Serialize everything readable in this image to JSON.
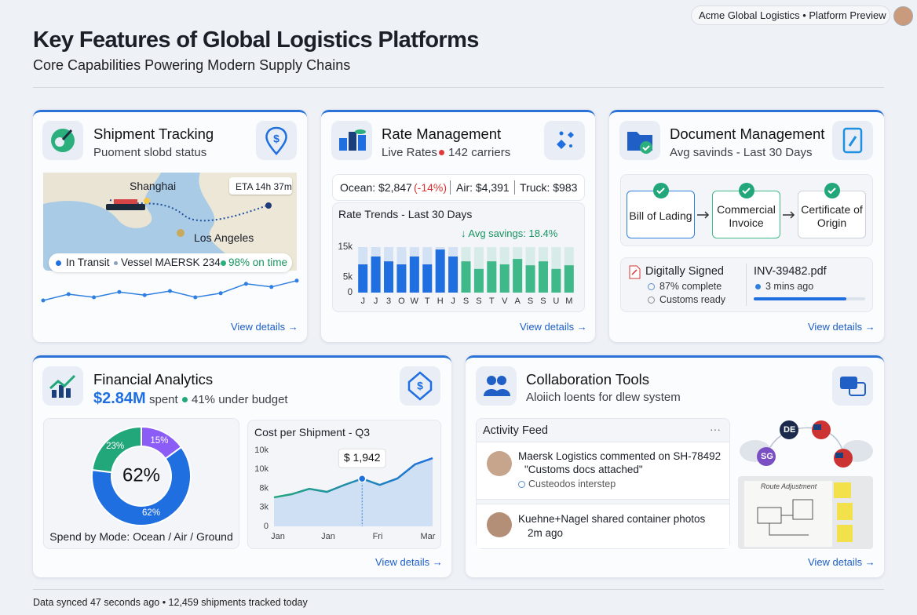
{
  "header": {
    "badge": "Acme Global Logistics • Platform Preview",
    "title": "Key Features of Global Logistics Platforms",
    "subtitle": "Core Capabilities Powering Modern Supply Chains"
  },
  "tracking": {
    "title": "Shipment Tracking",
    "subtitle": "Puoment slobd status",
    "origin": "Shanghai",
    "destination": "Los Angeles",
    "eta": "ETA 14h 37m",
    "status": [
      "In Transit",
      "Vessel MAERSK 234",
      "98% on time"
    ],
    "sparkline": {
      "type": "line",
      "values": [
        3,
        5,
        4,
        5.7,
        4.7,
        6,
        4,
        5.3,
        8.3,
        7.3,
        9.3
      ],
      "ylim": [
        0,
        10
      ],
      "color": "#2f7fe0"
    },
    "link": "View details →"
  },
  "rates": {
    "title": "Rate Management",
    "subtitle": "Live Rates",
    "carriers": "142 carriers",
    "ocean": "Ocean: $2,847",
    "ocean_change": "(-14%)",
    "air": "Air: $4,391",
    "truck": "Truck: $983",
    "chart": {
      "type": "bar",
      "title": "Rate Trends - Last 30 Days",
      "annotation": "↓ Avg savings: 18.4%",
      "categories": [
        "J",
        "J",
        "3",
        "O",
        "W",
        "T",
        "H",
        "J",
        "S",
        "S",
        "T",
        "V",
        "A",
        "S",
        "S",
        "U",
        "M"
      ],
      "values": [
        9300,
        11900,
        10300,
        9300,
        11900,
        9300,
        14200,
        11900,
        10300,
        7800,
        10300,
        9300,
        11100,
        9000,
        10300,
        7800,
        9000
      ],
      "colors": [
        "#1f6fe0",
        "#1f6fe0",
        "#1f6fe0",
        "#1f6fe0",
        "#1f6fe0",
        "#1f6fe0",
        "#1f6fe0",
        "#1f6fe0",
        "#3fb88a",
        "#3fb88a",
        "#3fb88a",
        "#3fb88a",
        "#3fb88a",
        "#3fb88a",
        "#3fb88a",
        "#3fb88a",
        "#3fb88a"
      ],
      "ylim": [
        0,
        15000
      ],
      "yticks": [
        {
          "value": 15000,
          "label": "15k"
        },
        {
          "value": 5000,
          "label": "5k"
        },
        0
      ]
    },
    "link": "View details →"
  },
  "documents": {
    "title": "Document Management",
    "subtitle": "Avg savinds - Last 30 Days",
    "steps": [
      "Bill of Lading",
      "Commercial Invoice",
      "Certificate of Origin"
    ],
    "signed": "Digitally Signed",
    "signed_items": [
      "87% complete",
      "Customs ready"
    ],
    "file": "INV-39482.pdf",
    "file_time": "3 mins ago",
    "link": "View details →"
  },
  "financial": {
    "title": "Financial Analytics",
    "amount": "$2.84M",
    "spent": "spent",
    "budget": "41% under budget",
    "donut": {
      "type": "pie",
      "values": [
        23,
        15,
        62
      ],
      "value_labels": [
        "23%",
        "15%",
        "62%"
      ],
      "colors": [
        "#22a77a",
        "#8b5cf6",
        "#1f6fe0"
      ],
      "center": "62%",
      "caption": "Spend by Mode: Ocean / Air / Ground"
    },
    "cost": {
      "type": "line",
      "title": "Cost per Shipment - Q3",
      "ylabels": [
        "10k",
        "10k",
        "8k",
        "3k",
        "0"
      ],
      "xlabels": [
        "Jan",
        "Jan",
        "Fri",
        "Mar"
      ],
      "values": [
        1180,
        1310,
        1530,
        1405,
        1690,
        1942,
        1690,
        1950,
        2525,
        2780
      ],
      "value_labels": [
        null,
        null,
        null,
        null,
        null,
        "$ 1,942",
        null,
        null,
        null,
        null
      ],
      "ylim": [
        0,
        3100
      ]
    },
    "link": "View details →"
  },
  "collab": {
    "title": "Collaboration Tools",
    "subtitle": "Aloiich loents for dlew system",
    "feed_title": "Activity Feed",
    "feed": [
      {
        "text": "Maersk Logistics commented on SH-78492",
        "quote": "\"Customs docs attached\"",
        "meta": "Custeodos interstep"
      },
      {
        "text": "Kuehne+Nagel shared container photos",
        "meta": "2m ago"
      }
    ],
    "avatars": [
      "DE",
      "SG"
    ],
    "whiteboard": "Route Adjustment",
    "link": "View details →"
  },
  "footer": "Data synced 47 seconds ago • 12,459 shipments tracked today"
}
